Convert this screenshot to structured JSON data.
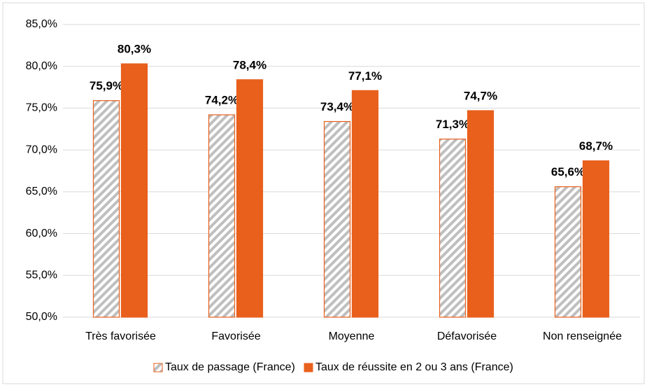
{
  "chart_data": {
    "type": "bar",
    "categories": [
      "Très favorisée",
      "Favorisée",
      "Moyenne",
      "Défavorisée",
      "Non renseignée"
    ],
    "series": [
      {
        "name": "Taux de passage (France)",
        "color": "#bfbfbf",
        "border_color": "#e8601c",
        "pattern": "hatch",
        "values": [
          75.9,
          74.2,
          73.4,
          71.3,
          65.6
        ],
        "value_labels": [
          "75,9%",
          "74,2%",
          "73,4%",
          "71,3%",
          "65,6%"
        ]
      },
      {
        "name": "Taux de réussite en 2 ou 3 ans (France)",
        "color": "#e8601c",
        "border_color": "#e8601c",
        "values": [
          80.3,
          78.4,
          77.1,
          74.7,
          68.7
        ],
        "value_labels": [
          "80,3%",
          "78,4%",
          "77,1%",
          "74,7%",
          "68,7%"
        ]
      }
    ],
    "ylim": [
      50,
      85
    ],
    "yticks": [
      {
        "value": 50,
        "label": "50,0%"
      },
      {
        "value": 55,
        "label": "55,0%"
      },
      {
        "value": 60,
        "label": "60,0%"
      },
      {
        "value": 65,
        "label": "65,0%"
      },
      {
        "value": 70,
        "label": "70,0%"
      },
      {
        "value": 75,
        "label": "75,0%"
      },
      {
        "value": 80,
        "label": "80,0%"
      },
      {
        "value": 85,
        "label": "85,0%"
      }
    ],
    "grid": true,
    "legend": "bottom"
  }
}
